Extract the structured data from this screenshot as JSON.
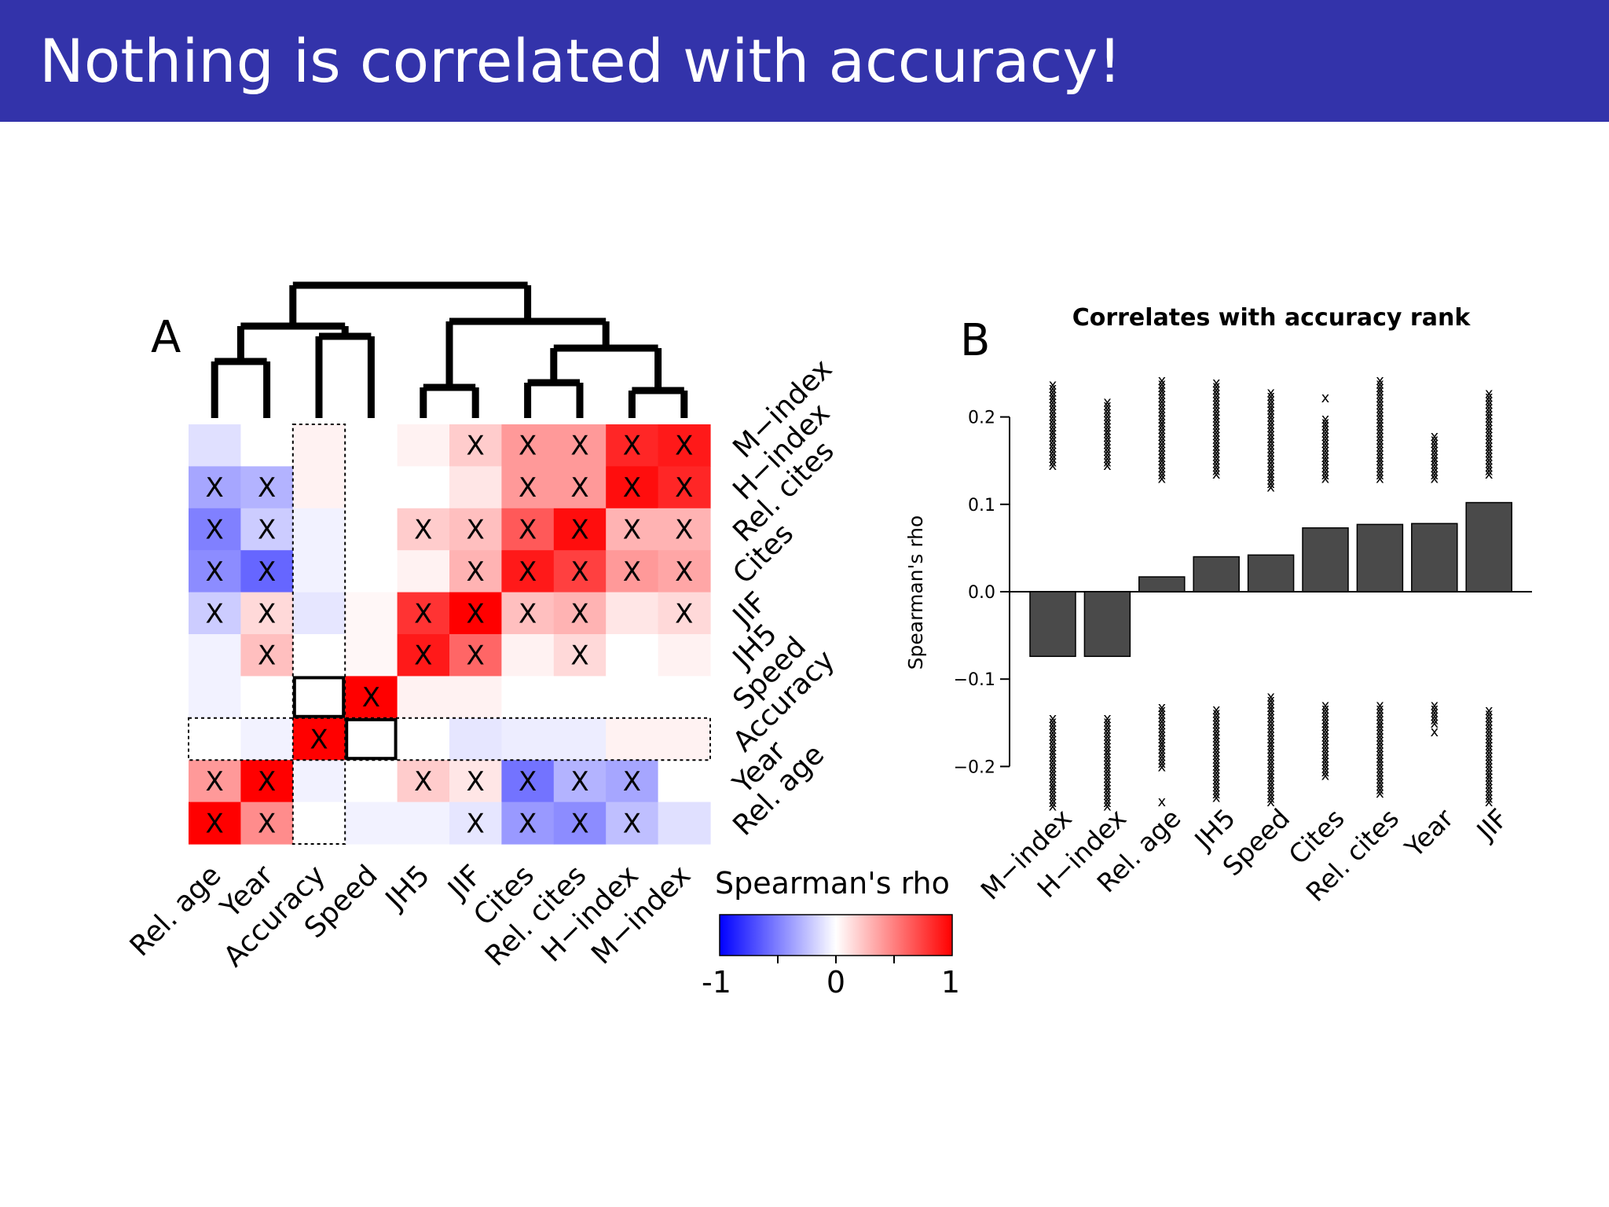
{
  "slide": {
    "title": "Nothing is correlated with accuracy!"
  },
  "colors": {
    "title_bar": "#3333aa",
    "negative": "#0000ff",
    "neutral": "#ffffff",
    "positive": "#ff0000",
    "bar_fill": "#4a4a4a"
  },
  "panel_a": {
    "label": "A",
    "legend": {
      "title": "Spearman's rho",
      "min_label": "-1",
      "mid_label": "0",
      "max_label": "1"
    }
  },
  "panel_b": {
    "label": "B",
    "title": "Correlates with accuracy rank",
    "ylabel": "Spearman's rho"
  },
  "chart_data": [
    {
      "type": "heatmap",
      "title": "",
      "value_label": "Spearman's rho",
      "columns": [
        "Rel. age",
        "Year",
        "Accuracy",
        "Speed",
        "JH5",
        "JIF",
        "Cites",
        "Rel. cites",
        "H−index",
        "M−index"
      ],
      "rows": [
        "M−index",
        "H−index",
        "Rel. cites",
        "Cites",
        "JIF",
        "JH5",
        "Speed",
        "Accuracy",
        "Year",
        "Rel. age"
      ],
      "values": [
        [
          -0.12,
          0.0,
          0.05,
          0.0,
          0.05,
          0.2,
          0.4,
          0.4,
          0.85,
          0.9
        ],
        [
          -0.35,
          -0.3,
          0.05,
          0.0,
          0.0,
          0.1,
          0.4,
          0.4,
          0.95,
          0.85
        ],
        [
          -0.5,
          -0.2,
          -0.05,
          0.0,
          0.2,
          0.25,
          0.65,
          0.95,
          0.3,
          0.3
        ],
        [
          -0.45,
          -0.6,
          -0.05,
          0.0,
          0.05,
          0.3,
          0.9,
          0.75,
          0.4,
          0.35
        ],
        [
          -0.2,
          0.15,
          -0.1,
          0.03,
          0.8,
          1.0,
          0.25,
          0.3,
          0.1,
          0.15
        ],
        [
          -0.05,
          0.25,
          0.0,
          0.03,
          0.9,
          0.6,
          0.05,
          0.15,
          0.0,
          0.05
        ],
        [
          -0.05,
          0.0,
          0.0,
          1.0,
          0.05,
          0.05,
          0.0,
          0.0,
          0.0,
          0.0
        ],
        [
          0.0,
          -0.05,
          1.0,
          0.0,
          0.0,
          -0.1,
          -0.07,
          -0.07,
          0.05,
          0.05
        ],
        [
          0.4,
          1.0,
          -0.05,
          0.0,
          0.2,
          0.1,
          -0.55,
          -0.3,
          -0.35,
          0.0
        ],
        [
          1.0,
          0.45,
          0.0,
          -0.05,
          -0.05,
          -0.1,
          -0.4,
          -0.45,
          -0.25,
          -0.12
        ]
      ],
      "significant": [
        [
          false,
          false,
          false,
          false,
          false,
          true,
          true,
          true,
          true,
          true
        ],
        [
          true,
          true,
          false,
          false,
          false,
          false,
          true,
          true,
          true,
          true
        ],
        [
          true,
          true,
          false,
          false,
          true,
          true,
          true,
          true,
          true,
          true
        ],
        [
          true,
          true,
          false,
          false,
          false,
          true,
          true,
          true,
          true,
          true
        ],
        [
          true,
          true,
          false,
          false,
          true,
          true,
          true,
          true,
          false,
          true
        ],
        [
          false,
          true,
          false,
          false,
          true,
          true,
          false,
          true,
          false,
          false
        ],
        [
          false,
          false,
          false,
          true,
          false,
          false,
          false,
          false,
          false,
          false
        ],
        [
          false,
          false,
          true,
          false,
          false,
          false,
          false,
          false,
          false,
          false
        ],
        [
          true,
          true,
          false,
          false,
          true,
          true,
          true,
          true,
          true,
          false
        ],
        [
          true,
          true,
          false,
          false,
          false,
          true,
          true,
          true,
          true,
          false
        ]
      ],
      "mark_symbol": "X",
      "scale": [
        -1,
        1
      ]
    },
    {
      "type": "bar",
      "title": "Correlates with accuracy rank",
      "xlabel": "",
      "ylabel": "Spearman's rho",
      "categories": [
        "M−index",
        "H−index",
        "Rel. age",
        "JH5",
        "Speed",
        "Cites",
        "Rel. cites",
        "Year",
        "JIF"
      ],
      "values": [
        -0.074,
        -0.074,
        0.017,
        0.04,
        0.042,
        0.073,
        0.077,
        0.078,
        0.102
      ],
      "ylim": [
        -0.25,
        0.25
      ],
      "yticks": [
        -0.2,
        -0.1,
        0.0,
        0.1,
        0.2
      ],
      "ytick_labels": [
        "−0.2",
        "−0.1",
        "0.0",
        "0.1",
        "0.2"
      ],
      "null_distribution": {
        "upper": [
          {
            "min": 0.145,
            "max": 0.24,
            "outliers": []
          },
          {
            "min": 0.145,
            "max": 0.22,
            "outliers": []
          },
          {
            "min": 0.13,
            "max": 0.245,
            "outliers": []
          },
          {
            "min": 0.135,
            "max": 0.24,
            "outliers": []
          },
          {
            "min": 0.12,
            "max": 0.23,
            "outliers": []
          },
          {
            "min": 0.13,
            "max": 0.2,
            "outliers": [
              0.222
            ]
          },
          {
            "min": 0.13,
            "max": 0.245,
            "outliers": []
          },
          {
            "min": 0.13,
            "max": 0.18,
            "outliers": []
          },
          {
            "min": 0.135,
            "max": 0.23,
            "outliers": []
          }
        ],
        "lower": [
          {
            "min": -0.245,
            "max": -0.145,
            "outliers": []
          },
          {
            "min": -0.245,
            "max": -0.145,
            "outliers": []
          },
          {
            "min": -0.2,
            "max": -0.13,
            "outliers": [
              -0.24
            ]
          },
          {
            "min": -0.235,
            "max": -0.135,
            "outliers": []
          },
          {
            "min": -0.24,
            "max": -0.12,
            "outliers": []
          },
          {
            "min": -0.21,
            "max": -0.13,
            "outliers": []
          },
          {
            "min": -0.23,
            "max": -0.13,
            "outliers": []
          },
          {
            "min": -0.15,
            "max": -0.13,
            "outliers": [
              -0.16
            ]
          },
          {
            "min": -0.24,
            "max": -0.135,
            "outliers": []
          }
        ]
      }
    }
  ]
}
